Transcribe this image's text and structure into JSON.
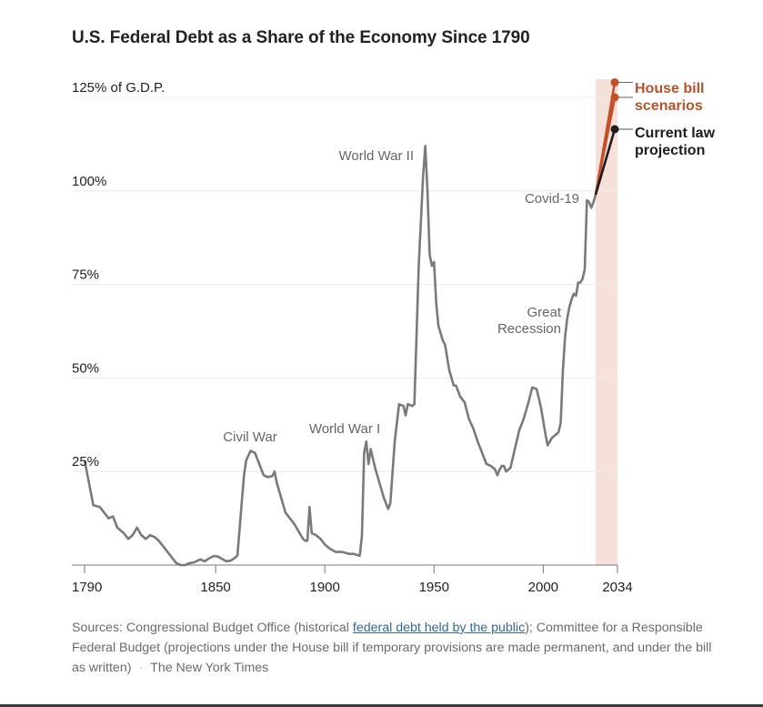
{
  "title": "U.S. Federal Debt as a Share of the Economy Since 1790",
  "source": {
    "prefix": "Sources: Congressional Budget Office (historical ",
    "link_text": "federal debt held by the public",
    "suffix": "); Committee for a Responsible Federal Budget (projections under the House bill if temporary provisions are made permanent, and under the bill as written)",
    "separator": "·",
    "credit": "The New York Times"
  },
  "colors": {
    "history": "#7a7a7a",
    "house_bill": "#c4502a",
    "house_bill_label": "#b5532d",
    "current_law": "#1f1a1c",
    "projection_band": "#f5e1da",
    "grid": "#ececec",
    "axis": "#777777"
  },
  "chart_data": {
    "type": "line",
    "title": "U.S. Federal Debt as a Share of the Economy Since 1790",
    "xlabel": "",
    "ylabel": "% of G.D.P.",
    "xlim": [
      1790,
      2034
    ],
    "ylim": [
      0,
      125
    ],
    "grid": true,
    "x_ticks": [
      1790,
      1850,
      1900,
      1950,
      2000,
      2034
    ],
    "y_ticks": [
      {
        "value": 25,
        "label": "25%"
      },
      {
        "value": 50,
        "label": "50%"
      },
      {
        "value": 75,
        "label": "75%"
      },
      {
        "value": 100,
        "label": "100%"
      },
      {
        "value": 125,
        "label": "125% of G.D.P."
      }
    ],
    "projection_band": [
      2024,
      2034
    ],
    "series": [
      {
        "name": "Historical debt held by the public",
        "points": [
          [
            1790,
            28
          ],
          [
            1792,
            22
          ],
          [
            1794,
            16
          ],
          [
            1797,
            15.5
          ],
          [
            1799,
            14
          ],
          [
            1801,
            12.5
          ],
          [
            1803,
            13
          ],
          [
            1805,
            10
          ],
          [
            1808,
            8.5
          ],
          [
            1810,
            7
          ],
          [
            1812,
            8
          ],
          [
            1814,
            10
          ],
          [
            1816,
            8
          ],
          [
            1818,
            7
          ],
          [
            1820,
            8
          ],
          [
            1822,
            7.5
          ],
          [
            1824,
            6.5
          ],
          [
            1826,
            5
          ],
          [
            1828,
            3.5
          ],
          [
            1830,
            2
          ],
          [
            1832,
            0.5
          ],
          [
            1834,
            0
          ],
          [
            1836,
            0
          ],
          [
            1838,
            0.5
          ],
          [
            1840,
            0.7
          ],
          [
            1843,
            1.5
          ],
          [
            1845,
            1
          ],
          [
            1847,
            1.8
          ],
          [
            1849,
            2.4
          ],
          [
            1851,
            2.3
          ],
          [
            1853,
            1.6
          ],
          [
            1855,
            1
          ],
          [
            1857,
            1.2
          ],
          [
            1859,
            2
          ],
          [
            1860,
            2.6
          ],
          [
            1862,
            17
          ],
          [
            1863,
            24
          ],
          [
            1864,
            28
          ],
          [
            1866,
            30.5
          ],
          [
            1868,
            30
          ],
          [
            1870,
            27
          ],
          [
            1872,
            24
          ],
          [
            1874,
            23.5
          ],
          [
            1876,
            23.8
          ],
          [
            1877,
            25
          ],
          [
            1878,
            22
          ],
          [
            1880,
            18
          ],
          [
            1882,
            14
          ],
          [
            1884,
            12.5
          ],
          [
            1886,
            11
          ],
          [
            1888,
            9
          ],
          [
            1890,
            7
          ],
          [
            1891,
            6.5
          ],
          [
            1892,
            6.5
          ],
          [
            1893,
            15.5
          ],
          [
            1894,
            8.5
          ],
          [
            1896,
            8
          ],
          [
            1898,
            7
          ],
          [
            1900,
            5.5
          ],
          [
            1902,
            4.5
          ],
          [
            1905,
            3.5
          ],
          [
            1908,
            3.5
          ],
          [
            1911,
            3
          ],
          [
            1913,
            3
          ],
          [
            1916,
            2.5
          ],
          [
            1917,
            8
          ],
          [
            1918,
            30
          ],
          [
            1919,
            33
          ],
          [
            1920,
            27
          ],
          [
            1921,
            31
          ],
          [
            1923,
            26
          ],
          [
            1925,
            22
          ],
          [
            1927,
            18
          ],
          [
            1929,
            15
          ],
          [
            1930,
            16.5
          ],
          [
            1932,
            33
          ],
          [
            1934,
            43
          ],
          [
            1936,
            42.5
          ],
          [
            1937,
            40
          ],
          [
            1938,
            43
          ],
          [
            1940,
            42.5
          ],
          [
            1941,
            43
          ],
          [
            1943,
            80
          ],
          [
            1945,
            104
          ],
          [
            1946,
            112
          ],
          [
            1947,
            100
          ],
          [
            1948,
            83
          ],
          [
            1949,
            80
          ],
          [
            1950,
            81
          ],
          [
            1951,
            70
          ],
          [
            1952,
            64
          ],
          [
            1954,
            60
          ],
          [
            1955,
            59
          ],
          [
            1957,
            52
          ],
          [
            1959,
            48
          ],
          [
            1960,
            48
          ],
          [
            1962,
            45
          ],
          [
            1964,
            43.5
          ],
          [
            1966,
            39
          ],
          [
            1968,
            36.5
          ],
          [
            1970,
            33
          ],
          [
            1972,
            30
          ],
          [
            1974,
            27
          ],
          [
            1976,
            26.5
          ],
          [
            1978,
            25.5
          ],
          [
            1979,
            24
          ],
          [
            1980,
            25.5
          ],
          [
            1981,
            26.5
          ],
          [
            1982,
            26.5
          ],
          [
            1983,
            25
          ],
          [
            1984,
            25.5
          ],
          [
            1985,
            26
          ],
          [
            1987,
            31
          ],
          [
            1989,
            36
          ],
          [
            1991,
            39
          ],
          [
            1993,
            43
          ],
          [
            1995,
            47.5
          ],
          [
            1997,
            47
          ],
          [
            1999,
            42
          ],
          [
            2001,
            35
          ],
          [
            2002,
            32
          ],
          [
            2004,
            34
          ],
          [
            2006,
            35
          ],
          [
            2007,
            35.5
          ],
          [
            2008,
            38
          ],
          [
            2009,
            52
          ],
          [
            2010,
            61
          ],
          [
            2011,
            66
          ],
          [
            2012,
            69
          ],
          [
            2013,
            71
          ],
          [
            2014,
            72.5
          ],
          [
            2015,
            72
          ],
          [
            2016,
            75.5
          ],
          [
            2017,
            75.5
          ],
          [
            2018,
            76.5
          ],
          [
            2019,
            79
          ],
          [
            2020,
            97.5
          ],
          [
            2021,
            97
          ],
          [
            2022,
            95.5
          ],
          [
            2023,
            97
          ],
          [
            2024,
            99
          ]
        ]
      },
      {
        "name": "House bill scenarios (temporary provisions made permanent)",
        "points": [
          [
            2024,
            99
          ],
          [
            2034,
            129
          ]
        ]
      },
      {
        "name": "House bill scenarios (bill as written)",
        "points": [
          [
            2024,
            99
          ],
          [
            2034,
            125
          ]
        ]
      },
      {
        "name": "Current law projection",
        "points": [
          [
            2024,
            99
          ],
          [
            2034,
            116.5
          ]
        ]
      }
    ],
    "annotations": [
      {
        "text": "Civil War",
        "x": 1865,
        "y": 33
      },
      {
        "text": "World War I",
        "x": 1914,
        "y": 35.5
      },
      {
        "text": "World War II",
        "x": 1941,
        "y": 110
      },
      {
        "text": "Great\nRecession",
        "x": 2004,
        "y": 65
      },
      {
        "text": "Covid-19",
        "x": 2019,
        "y": 98
      }
    ],
    "legend": [
      {
        "text": "House bill scenarios",
        "color_key": "house_bill_label",
        "placement": "right"
      },
      {
        "text": "Current law projection",
        "color_key": "current_law",
        "placement": "right"
      }
    ]
  }
}
